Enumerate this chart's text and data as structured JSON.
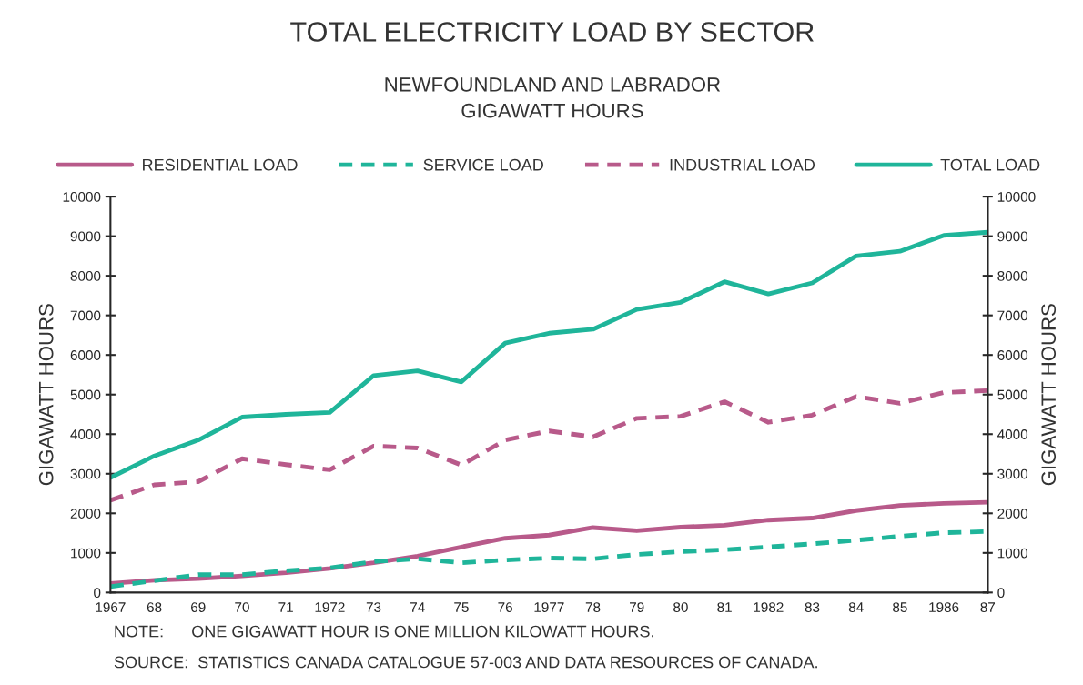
{
  "chart_data": {
    "type": "line",
    "title": "TOTAL ELECTRICITY LOAD BY SECTOR",
    "subtitle": "NEWFOUNDLAND AND LABRADOR\nGIGAWATT HOURS",
    "ylabel": "GIGAWATT HOURS",
    "y2label": "GIGAWATT HOURS",
    "x": [
      1967,
      1968,
      1969,
      1970,
      1971,
      1972,
      1973,
      1974,
      1975,
      1976,
      1977,
      1978,
      1979,
      1980,
      1981,
      1982,
      1983,
      1984,
      1985,
      1986,
      1987
    ],
    "series": [
      {
        "name": "RESIDENTIAL LOAD",
        "color": "#b85a8a",
        "line_style": "solid",
        "values": [
          230,
          310,
          350,
          420,
          500,
          610,
          750,
          920,
          1150,
          1370,
          1450,
          1640,
          1560,
          1650,
          1700,
          1830,
          1880,
          2070,
          2200,
          2250,
          2280
        ]
      },
      {
        "name": "SERVICE LOAD",
        "color": "#1fb59a",
        "line_style": "dashed",
        "values": [
          150,
          300,
          450,
          450,
          550,
          620,
          780,
          850,
          750,
          820,
          870,
          850,
          960,
          1030,
          1080,
          1150,
          1230,
          1320,
          1420,
          1510,
          1540
        ]
      },
      {
        "name": "INDUSTRIAL LOAD",
        "color": "#b85a8a",
        "line_style": "dashed",
        "values": [
          2330,
          2720,
          2800,
          3380,
          3230,
          3100,
          3700,
          3650,
          3220,
          3850,
          4080,
          3930,
          4400,
          4450,
          4820,
          4300,
          4480,
          4950,
          4780,
          5050,
          5100
        ]
      },
      {
        "name": "TOTAL LOAD",
        "color": "#1fb59a",
        "line_style": "solid",
        "values": [
          2900,
          3450,
          3850,
          4430,
          4500,
          4550,
          5480,
          5600,
          5320,
          6300,
          6550,
          6650,
          7150,
          7330,
          7850,
          7540,
          7820,
          8500,
          8620,
          9020,
          9100
        ]
      }
    ],
    "xlim": [
      1967,
      1987
    ],
    "xticks": [
      1967,
      {
        "value": 1968,
        "label": "68"
      },
      {
        "value": 1969,
        "label": "69"
      },
      {
        "value": 1970,
        "label": "70"
      },
      {
        "value": 1971,
        "label": "71"
      },
      1972,
      {
        "value": 1973,
        "label": "73"
      },
      {
        "value": 1974,
        "label": "74"
      },
      {
        "value": 1975,
        "label": "75"
      },
      {
        "value": 1976,
        "label": "76"
      },
      1977,
      {
        "value": 1978,
        "label": "78"
      },
      {
        "value": 1979,
        "label": "79"
      },
      {
        "value": 1980,
        "label": "80"
      },
      {
        "value": 1981,
        "label": "81"
      },
      1982,
      {
        "value": 1983,
        "label": "83"
      },
      {
        "value": 1984,
        "label": "84"
      },
      {
        "value": 1985,
        "label": "85"
      },
      1986,
      {
        "value": 1987,
        "label": "87"
      }
    ],
    "ylim": [
      0,
      10000
    ],
    "yticks": [
      0,
      1000,
      2000,
      3000,
      4000,
      5000,
      6000,
      7000,
      8000,
      9000,
      10000
    ],
    "y2lim": [
      0,
      10000
    ],
    "y2ticks": [
      0,
      1000,
      2000,
      3000,
      4000,
      5000,
      6000,
      7000,
      8000,
      9000,
      10000
    ],
    "grid": false,
    "legend": "top",
    "marker": "none",
    "annotations": [
      "NOTE:      ONE GIGAWATT HOUR IS ONE MILLION KILOWATT HOURS.",
      "SOURCE:  STATISTICS CANADA CATALOGUE 57-003 AND DATA RESOURCES OF CANADA."
    ]
  }
}
